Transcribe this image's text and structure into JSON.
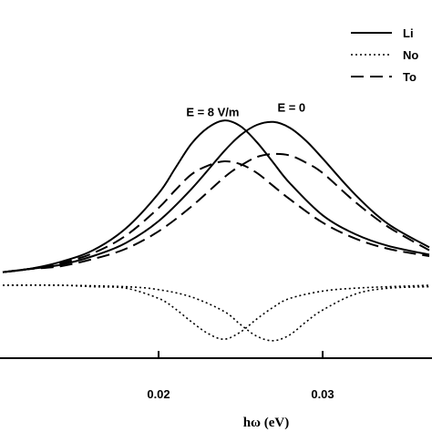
{
  "chart_data": {
    "type": "line",
    "xlabel": "hω (eV)",
    "xlim": [
      0.0105,
      0.0365
    ],
    "ylim": [
      -0.6,
      1.4
    ],
    "xticks": [
      {
        "value": 0.02,
        "label": "0.02"
      },
      {
        "value": 0.03,
        "label": "0.03"
      }
    ],
    "annotations": [
      {
        "text": "E = 8 V/m",
        "x": 0.0233,
        "y": 1.16
      },
      {
        "text": "E = 0",
        "x": 0.0281,
        "y": 1.19
      }
    ],
    "legend": {
      "position": "top-right",
      "entries": [
        {
          "label": "Li",
          "style": "solid"
        },
        {
          "label": "No",
          "style": "dotted"
        },
        {
          "label": "To",
          "style": "dashed"
        }
      ]
    },
    "series": [
      {
        "group": "E = 0",
        "style": "solid",
        "x": [
          0.0105,
          0.012,
          0.014,
          0.016,
          0.018,
          0.02,
          0.022,
          0.024,
          0.025,
          0.026,
          0.027,
          0.028,
          0.029,
          0.03,
          0.032,
          0.034,
          0.0365
        ],
        "y": [
          0.09,
          0.11,
          0.14,
          0.2,
          0.29,
          0.44,
          0.66,
          0.92,
          1.03,
          1.1,
          1.12,
          1.08,
          0.99,
          0.87,
          0.62,
          0.42,
          0.26
        ]
      },
      {
        "group": "E = 8 V/m",
        "style": "solid",
        "x": [
          0.0105,
          0.012,
          0.014,
          0.016,
          0.018,
          0.02,
          0.021,
          0.022,
          0.023,
          0.024,
          0.025,
          0.026,
          0.027,
          0.028,
          0.03,
          0.032,
          0.034,
          0.0365
        ],
        "y": [
          0.09,
          0.11,
          0.16,
          0.24,
          0.39,
          0.63,
          0.8,
          0.97,
          1.08,
          1.13,
          1.09,
          0.98,
          0.84,
          0.7,
          0.48,
          0.35,
          0.27,
          0.21
        ]
      },
      {
        "group": "E = 0",
        "style": "dashed",
        "x": [
          0.0105,
          0.012,
          0.014,
          0.016,
          0.018,
          0.02,
          0.022,
          0.024,
          0.025,
          0.026,
          0.027,
          0.028,
          0.029,
          0.03,
          0.032,
          0.034,
          0.0365
        ],
        "y": [
          0.09,
          0.11,
          0.13,
          0.18,
          0.25,
          0.37,
          0.54,
          0.74,
          0.82,
          0.88,
          0.9,
          0.89,
          0.84,
          0.77,
          0.57,
          0.4,
          0.24
        ]
      },
      {
        "group": "E = 8 V/m",
        "style": "dashed",
        "x": [
          0.0105,
          0.012,
          0.014,
          0.016,
          0.018,
          0.02,
          0.021,
          0.022,
          0.023,
          0.024,
          0.025,
          0.026,
          0.027,
          0.028,
          0.03,
          0.032,
          0.034,
          0.0365
        ],
        "y": [
          0.09,
          0.11,
          0.15,
          0.22,
          0.34,
          0.53,
          0.65,
          0.76,
          0.82,
          0.85,
          0.83,
          0.77,
          0.68,
          0.59,
          0.43,
          0.32,
          0.25,
          0.2
        ]
      },
      {
        "group": "E = 0",
        "style": "dotted",
        "x": [
          0.0105,
          0.014,
          0.018,
          0.02,
          0.022,
          0.024,
          0.025,
          0.026,
          0.027,
          0.028,
          0.029,
          0.03,
          0.032,
          0.034,
          0.0365
        ],
        "y": [
          0.0,
          0.0,
          -0.01,
          -0.03,
          -0.08,
          -0.18,
          -0.27,
          -0.35,
          -0.38,
          -0.34,
          -0.25,
          -0.17,
          -0.06,
          -0.02,
          -0.01
        ]
      },
      {
        "group": "E = 8 V/m",
        "style": "dotted",
        "x": [
          0.0105,
          0.014,
          0.016,
          0.018,
          0.02,
          0.021,
          0.022,
          0.023,
          0.024,
          0.025,
          0.026,
          0.027,
          0.028,
          0.03,
          0.032,
          0.034,
          0.0365
        ],
        "y": [
          0.0,
          0.0,
          -0.01,
          -0.02,
          -0.09,
          -0.16,
          -0.25,
          -0.33,
          -0.37,
          -0.32,
          -0.23,
          -0.15,
          -0.09,
          -0.04,
          -0.02,
          -0.01,
          0.0
        ]
      }
    ]
  }
}
